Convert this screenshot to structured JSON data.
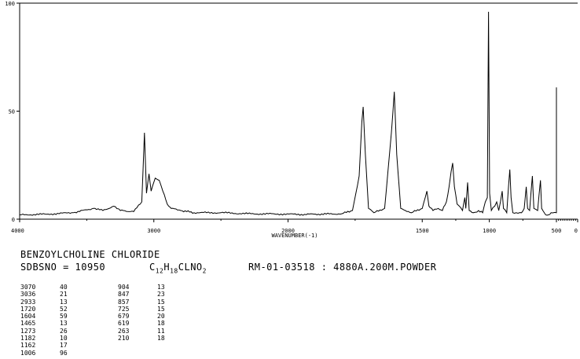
{
  "chart_data": {
    "type": "line",
    "title": "",
    "xlabel": "WAVENUMBER(-1)",
    "ylabel": "",
    "xlim": [
      4000,
      100
    ],
    "ylim": [
      0,
      100
    ],
    "x_ticks": [
      "4000",
      "3000",
      "2000",
      "1500",
      "1000",
      "500",
      "0"
    ],
    "x_tick_values": [
      4000,
      3000,
      2000,
      1500,
      1000,
      500,
      0
    ],
    "y_ticks": [
      "100",
      "50",
      "0"
    ],
    "y_tick_values": [
      100,
      50,
      0
    ],
    "series": [
      {
        "points": [
          [
            4000,
            2
          ],
          [
            3800,
            2.3
          ],
          [
            3600,
            3
          ],
          [
            3450,
            5
          ],
          [
            3380,
            4
          ],
          [
            3300,
            6
          ],
          [
            3250,
            4
          ],
          [
            3150,
            3.5
          ],
          [
            3090,
            8
          ],
          [
            3070,
            40
          ],
          [
            3055,
            12
          ],
          [
            3036,
            21
          ],
          [
            3020,
            13
          ],
          [
            2990,
            19
          ],
          [
            2960,
            18
          ],
          [
            2933,
            13
          ],
          [
            2900,
            7
          ],
          [
            2870,
            5
          ],
          [
            2800,
            4
          ],
          [
            2700,
            3
          ],
          [
            2500,
            3
          ],
          [
            2300,
            2.5
          ],
          [
            2100,
            2.4
          ],
          [
            1950,
            2.2
          ],
          [
            1800,
            2.5
          ],
          [
            1760,
            4
          ],
          [
            1735,
            20
          ],
          [
            1725,
            45
          ],
          [
            1720,
            52
          ],
          [
            1712,
            30
          ],
          [
            1700,
            5
          ],
          [
            1680,
            3
          ],
          [
            1640,
            5
          ],
          [
            1615,
            40
          ],
          [
            1604,
            59
          ],
          [
            1595,
            30
          ],
          [
            1580,
            5
          ],
          [
            1540,
            3
          ],
          [
            1500,
            5
          ],
          [
            1465,
            13
          ],
          [
            1450,
            6
          ],
          [
            1420,
            4
          ],
          [
            1380,
            5
          ],
          [
            1350,
            4
          ],
          [
            1320,
            8
          ],
          [
            1300,
            15
          ],
          [
            1285,
            22
          ],
          [
            1273,
            26
          ],
          [
            1260,
            15
          ],
          [
            1240,
            7
          ],
          [
            1200,
            4
          ],
          [
            1182,
            10
          ],
          [
            1175,
            5
          ],
          [
            1162,
            17
          ],
          [
            1150,
            4
          ],
          [
            1120,
            3
          ],
          [
            1080,
            4
          ],
          [
            1050,
            3
          ],
          [
            1030,
            8
          ],
          [
            1015,
            10
          ],
          [
            1006,
            96
          ],
          [
            998,
            12
          ],
          [
            985,
            4
          ],
          [
            960,
            6
          ],
          [
            945,
            8
          ],
          [
            930,
            4
          ],
          [
            904,
            13
          ],
          [
            895,
            5
          ],
          [
            870,
            3
          ],
          [
            857,
            15
          ],
          [
            847,
            23
          ],
          [
            838,
            10
          ],
          [
            825,
            3
          ],
          [
            800,
            3
          ],
          [
            760,
            3
          ],
          [
            740,
            5
          ],
          [
            725,
            15
          ],
          [
            715,
            5
          ],
          [
            700,
            4
          ],
          [
            679,
            20
          ],
          [
            668,
            5
          ],
          [
            640,
            4
          ],
          [
            619,
            18
          ],
          [
            610,
            5
          ],
          [
            580,
            2
          ],
          [
            560,
            2
          ],
          [
            540,
            3
          ],
          [
            500,
            3
          ],
          [
            450,
            3
          ],
          [
            420,
            4
          ],
          [
            400,
            5
          ],
          [
            380,
            3
          ],
          [
            340,
            3
          ],
          [
            320,
            6
          ],
          [
            300,
            11
          ],
          [
            285,
            6
          ],
          [
            270,
            12
          ],
          [
            263,
            11
          ],
          [
            250,
            14
          ],
          [
            235,
            18
          ],
          [
            220,
            20
          ],
          [
            210,
            18
          ],
          [
            200,
            24
          ],
          [
            185,
            35
          ],
          [
            170,
            50
          ],
          [
            160,
            61
          ]
        ]
      }
    ],
    "peak_table": [
      [
        "3070",
        "40"
      ],
      [
        "3036",
        "21"
      ],
      [
        "2933",
        "13"
      ],
      [
        "1720",
        "52"
      ],
      [
        "1604",
        "59"
      ],
      [
        "1465",
        "13"
      ],
      [
        "1273",
        "26"
      ],
      [
        "1182",
        "10"
      ],
      [
        "1162",
        "17"
      ],
      [
        "1006",
        "96"
      ],
      [
        "904",
        "13"
      ],
      [
        "847",
        "23"
      ],
      [
        "857",
        "15"
      ],
      [
        "725",
        "15"
      ],
      [
        "679",
        "20"
      ],
      [
        "619",
        "18"
      ],
      [
        "263",
        "11"
      ],
      [
        "210",
        "18"
      ]
    ],
    "grid": false,
    "legend": "none"
  },
  "info": {
    "compound": "BENZOYLCHOLINE CHLORIDE",
    "sdbs": "SDBSNO = 10950",
    "formula": {
      "c": "C",
      "c_count": "12",
      "h": "H",
      "h_count": "18",
      "rest": "CLNO",
      "o_count": "2"
    },
    "measurement": "RM-01-03518 : 4880A.200M.POWDER"
  }
}
